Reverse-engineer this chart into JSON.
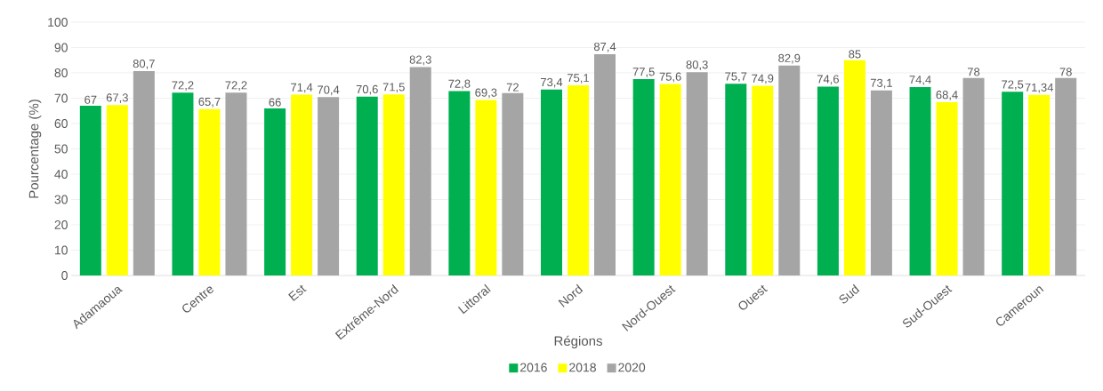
{
  "chart_data": {
    "type": "bar",
    "xlabel": "Régions",
    "ylabel": "Pourcentage (%)",
    "categories": [
      "Adamaoua",
      "Centre",
      "Est",
      "Extrême-Nord",
      "Littoral",
      "Nord",
      "Nord-Ouest",
      "Ouest",
      "Sud",
      "Sud-Ouest",
      "Cameroun"
    ],
    "series": [
      {
        "name": "2016",
        "color": "#00b050",
        "values": [
          67,
          72.2,
          66,
          70.6,
          72.8,
          73.4,
          77.5,
          75.7,
          74.6,
          74.4,
          72.5
        ],
        "value_labels": [
          "67",
          "72,2",
          "66",
          "70,6",
          "72,8",
          "73,4",
          "77,5",
          "75,7",
          "74,6",
          "74,4",
          "72,5"
        ]
      },
      {
        "name": "2018",
        "color": "#ffff00",
        "values": [
          67.3,
          65.7,
          71.4,
          71.5,
          69.3,
          75.1,
          75.6,
          74.9,
          85,
          68.4,
          71.34
        ],
        "value_labels": [
          "67,3",
          "65,7",
          "71,4",
          "71,5",
          "69,3",
          "75,1",
          "75,6",
          "74,9",
          "85",
          "68,4",
          "71,34"
        ]
      },
      {
        "name": "2020",
        "color": "#a5a5a5",
        "values": [
          80.7,
          72.2,
          70.4,
          82.3,
          72,
          87.4,
          80.3,
          82.9,
          73.1,
          78,
          78
        ],
        "value_labels": [
          "80,7",
          "72,2",
          "70,4",
          "82,3",
          "72",
          "87,4",
          "80,3",
          "82,9",
          "73,1",
          "78",
          "78"
        ]
      }
    ],
    "ylim": [
      0,
      100
    ],
    "yticks": [
      0,
      10,
      20,
      30,
      40,
      50,
      60,
      70,
      80,
      90,
      100
    ],
    "grid": "y",
    "legend": "bottom"
  }
}
